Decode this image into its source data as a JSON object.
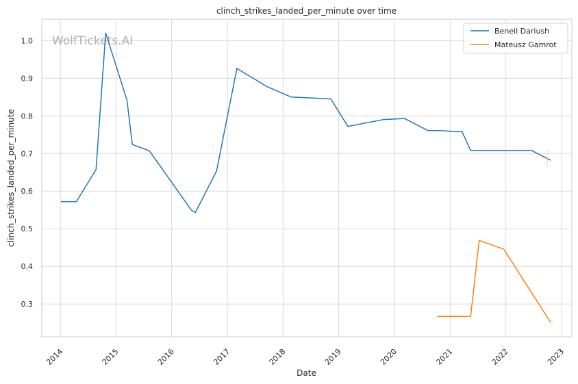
{
  "chart_data": {
    "type": "line",
    "title": "clinch_strikes_landed_per_minute over time",
    "xlabel": "Date",
    "ylabel": "clinch_strikes_landed_per_minute",
    "watermark": "WolfTickets.AI",
    "xlim": [
      "2013-09-01",
      "2023-03-10"
    ],
    "ylim": [
      0.213,
      1.057
    ],
    "x_ticks": [
      "2014",
      "2015",
      "2016",
      "2017",
      "2018",
      "2019",
      "2020",
      "2021",
      "2022",
      "2023"
    ],
    "y_ticks": [
      "0.3",
      "0.4",
      "0.5",
      "0.6",
      "0.7",
      "0.8",
      "0.9",
      "1.0"
    ],
    "grid": true,
    "legend_position": "top-right",
    "series": [
      {
        "name": "Beneil Dariush",
        "color": "#1f77b4",
        "points": [
          [
            "2014-01-04",
            0.572
          ],
          [
            "2014-04-16",
            0.572
          ],
          [
            "2014-08-23",
            0.657
          ],
          [
            "2014-10-25",
            1.02
          ],
          [
            "2015-03-14",
            0.842
          ],
          [
            "2015-04-18",
            0.724
          ],
          [
            "2015-08-08",
            0.707
          ],
          [
            "2016-05-08",
            0.55
          ],
          [
            "2016-06-04",
            0.543
          ],
          [
            "2016-10-22",
            0.654
          ],
          [
            "2017-03-04",
            0.926
          ],
          [
            "2017-09-16",
            0.878
          ],
          [
            "2018-02-24",
            0.85
          ],
          [
            "2018-11-10",
            0.845
          ],
          [
            "2019-03-02",
            0.772
          ],
          [
            "2019-10-18",
            0.79
          ],
          [
            "2020-03-07",
            0.793
          ],
          [
            "2020-08-08",
            0.761
          ],
          [
            "2020-10-31",
            0.761
          ],
          [
            "2021-02-06",
            0.758
          ],
          [
            "2021-03-20",
            0.758
          ],
          [
            "2021-05-15",
            0.708
          ],
          [
            "2021-10-30",
            0.708
          ],
          [
            "2022-06-20",
            0.708
          ],
          [
            "2022-10-22",
            0.682
          ]
        ]
      },
      {
        "name": "Mateusz Gamrot",
        "color": "#ff7f0e",
        "points": [
          [
            "2020-10-10",
            0.267
          ],
          [
            "2021-03-10",
            0.267
          ],
          [
            "2021-05-15",
            0.267
          ],
          [
            "2021-07-10",
            0.469
          ],
          [
            "2021-12-18",
            0.446
          ],
          [
            "2022-10-22",
            0.251
          ]
        ]
      }
    ]
  }
}
